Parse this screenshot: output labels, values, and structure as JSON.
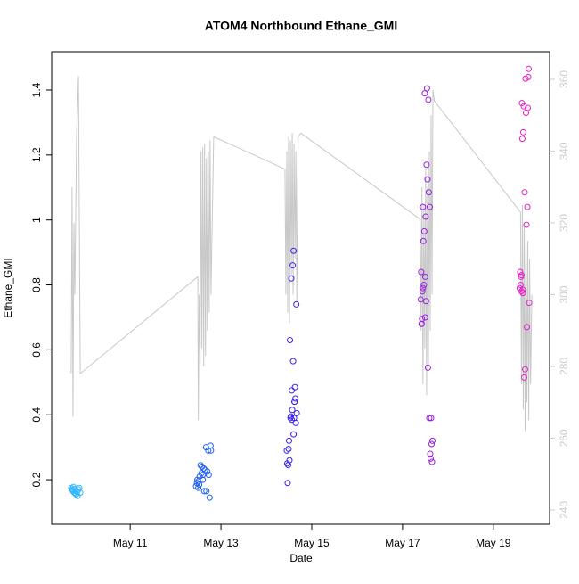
{
  "chart_data": {
    "type": "scatter",
    "title": "ATOM4 Northbound Ethane_GMI",
    "x_label": "Date",
    "y_label": "Ethane_GMI",
    "xlim": [
      9.27,
      20.24
    ],
    "xticks": [
      {
        "value": 11,
        "label": "May 11"
      },
      {
        "value": 13,
        "label": "May 13"
      },
      {
        "value": 15,
        "label": "May 15"
      },
      {
        "value": 17,
        "label": "May 17"
      },
      {
        "value": 19,
        "label": "May 19"
      }
    ],
    "ylim": [
      0.063,
      1.518
    ],
    "yticks": [
      0.2,
      0.4,
      0.6,
      0.8,
      1.0,
      1.2,
      1.4
    ],
    "y2lim": [
      236.0,
      367.7
    ],
    "y2ticks": [
      240,
      260,
      280,
      300,
      320,
      340,
      360
    ],
    "y2_color": "#cccccc",
    "series": [
      {
        "color": "#33b5ff",
        "x": [
          9.7,
          9.72,
          9.74,
          9.75,
          9.77,
          9.78,
          9.8,
          9.81,
          9.83,
          9.84,
          9.86,
          9.88,
          9.9,
          9.73,
          9.79
        ],
        "values": [
          0.175,
          0.17,
          0.165,
          0.178,
          0.16,
          0.172,
          0.168,
          0.155,
          0.163,
          0.15,
          0.17,
          0.175,
          0.16,
          0.168,
          0.158
        ]
      },
      {
        "color": "#1f5ff0",
        "x": [
          12.45,
          12.47,
          12.48,
          12.5,
          12.52,
          12.53,
          12.55,
          12.57,
          12.58,
          12.6,
          12.62,
          12.63,
          12.65,
          12.67,
          12.68,
          12.7,
          12.72,
          12.73,
          12.75,
          12.77,
          12.78,
          12.5,
          12.6
        ],
        "values": [
          0.18,
          0.19,
          0.2,
          0.175,
          0.185,
          0.21,
          0.245,
          0.22,
          0.24,
          0.2,
          0.235,
          0.165,
          0.23,
          0.3,
          0.165,
          0.225,
          0.29,
          0.215,
          0.145,
          0.305,
          0.29,
          0.195,
          0.215
        ]
      },
      {
        "color": "#3a22ee",
        "x": [
          14.45,
          14.46,
          14.47,
          14.48,
          14.5,
          14.51,
          14.52,
          14.53,
          14.54,
          14.55,
          14.56,
          14.57,
          14.58,
          14.59,
          14.6,
          14.61,
          14.62,
          14.63,
          14.64,
          14.65,
          14.66,
          14.67,
          14.6,
          14.56,
          14.62,
          14.49
        ],
        "values": [
          0.29,
          0.25,
          0.19,
          0.245,
          0.32,
          0.26,
          0.63,
          0.39,
          0.395,
          0.82,
          0.475,
          0.415,
          0.86,
          0.565,
          0.905,
          0.39,
          0.44,
          0.485,
          0.45,
          0.375,
          0.74,
          0.405,
          0.34,
          0.385,
          0.44,
          0.295
        ]
      },
      {
        "color": "#9a1fe0",
        "x": [
          17.4,
          17.41,
          17.42,
          17.43,
          17.44,
          17.45,
          17.46,
          17.47,
          17.48,
          17.49,
          17.5,
          17.51,
          17.52,
          17.53,
          17.54,
          17.55,
          17.56,
          17.57,
          17.58,
          17.59,
          17.6,
          17.61,
          17.62,
          17.63,
          17.64,
          17.65,
          17.66,
          17.45,
          17.5,
          17.42
        ],
        "values": [
          0.755,
          0.84,
          0.68,
          0.695,
          0.78,
          1.04,
          0.935,
          0.8,
          0.965,
          1.39,
          0.7,
          1.01,
          0.75,
          1.17,
          1.405,
          1.125,
          0.545,
          1.37,
          1.085,
          0.39,
          1.04,
          0.28,
          0.265,
          0.39,
          0.31,
          0.255,
          0.32,
          0.79,
          0.825,
          0.68
        ]
      },
      {
        "color": "#e81fc8",
        "x": [
          19.58,
          19.59,
          19.6,
          19.61,
          19.62,
          19.63,
          19.64,
          19.65,
          19.66,
          19.67,
          19.68,
          19.69,
          19.7,
          19.71,
          19.72,
          19.73,
          19.74,
          19.75,
          19.76,
          19.77,
          19.78,
          19.79,
          19.65,
          19.62
        ],
        "values": [
          0.79,
          0.84,
          0.8,
          0.825,
          0.83,
          1.36,
          1.25,
          0.785,
          1.27,
          1.35,
          0.515,
          1.085,
          0.54,
          1.435,
          1.33,
          0.985,
          0.67,
          1.04,
          1.345,
          1.44,
          1.465,
          0.745,
          0.775,
          0.78
        ]
      },
      {
        "type": "line",
        "axis": "y2",
        "color": "#c8c8c8",
        "x": [
          9.7,
          9.72,
          9.74,
          9.76,
          9.78,
          9.82,
          9.86,
          9.9,
          12.49,
          12.5,
          12.52,
          12.54,
          12.56,
          12.58,
          12.6,
          12.62,
          12.64,
          12.66,
          12.68,
          12.7,
          12.72,
          12.74,
          12.76,
          12.78,
          12.84,
          14.41,
          14.43,
          14.45,
          14.47,
          14.49,
          14.51,
          14.53,
          14.55,
          14.57,
          14.59,
          14.61,
          14.63,
          14.65,
          14.67,
          14.7,
          14.76,
          17.39,
          17.41,
          17.43,
          17.45,
          17.47,
          17.49,
          17.51,
          17.53,
          17.55,
          17.57,
          17.59,
          17.61,
          17.63,
          17.65,
          17.67,
          17.7,
          19.6,
          19.62,
          19.64,
          19.66,
          19.68,
          19.7,
          19.72,
          19.74,
          19.76,
          19.78,
          19.8,
          19.82,
          19.85
        ],
        "values": [
          278,
          330,
          266,
          320,
          300,
          345,
          361,
          278,
          305,
          265,
          300,
          280,
          340,
          285,
          341,
          280,
          342,
          283,
          338,
          290,
          340,
          295,
          343,
          300,
          344,
          335,
          300,
          340,
          295,
          344,
          292,
          343,
          305,
          345,
          300,
          342,
          310,
          340,
          298,
          344,
          345,
          321,
          290,
          330,
          275,
          325,
          285,
          335,
          272,
          330,
          280,
          340,
          290,
          350,
          300,
          357,
          354,
          323,
          275,
          325,
          268,
          320,
          262,
          318,
          270,
          315,
          265,
          310,
          275,
          300
        ]
      }
    ]
  }
}
